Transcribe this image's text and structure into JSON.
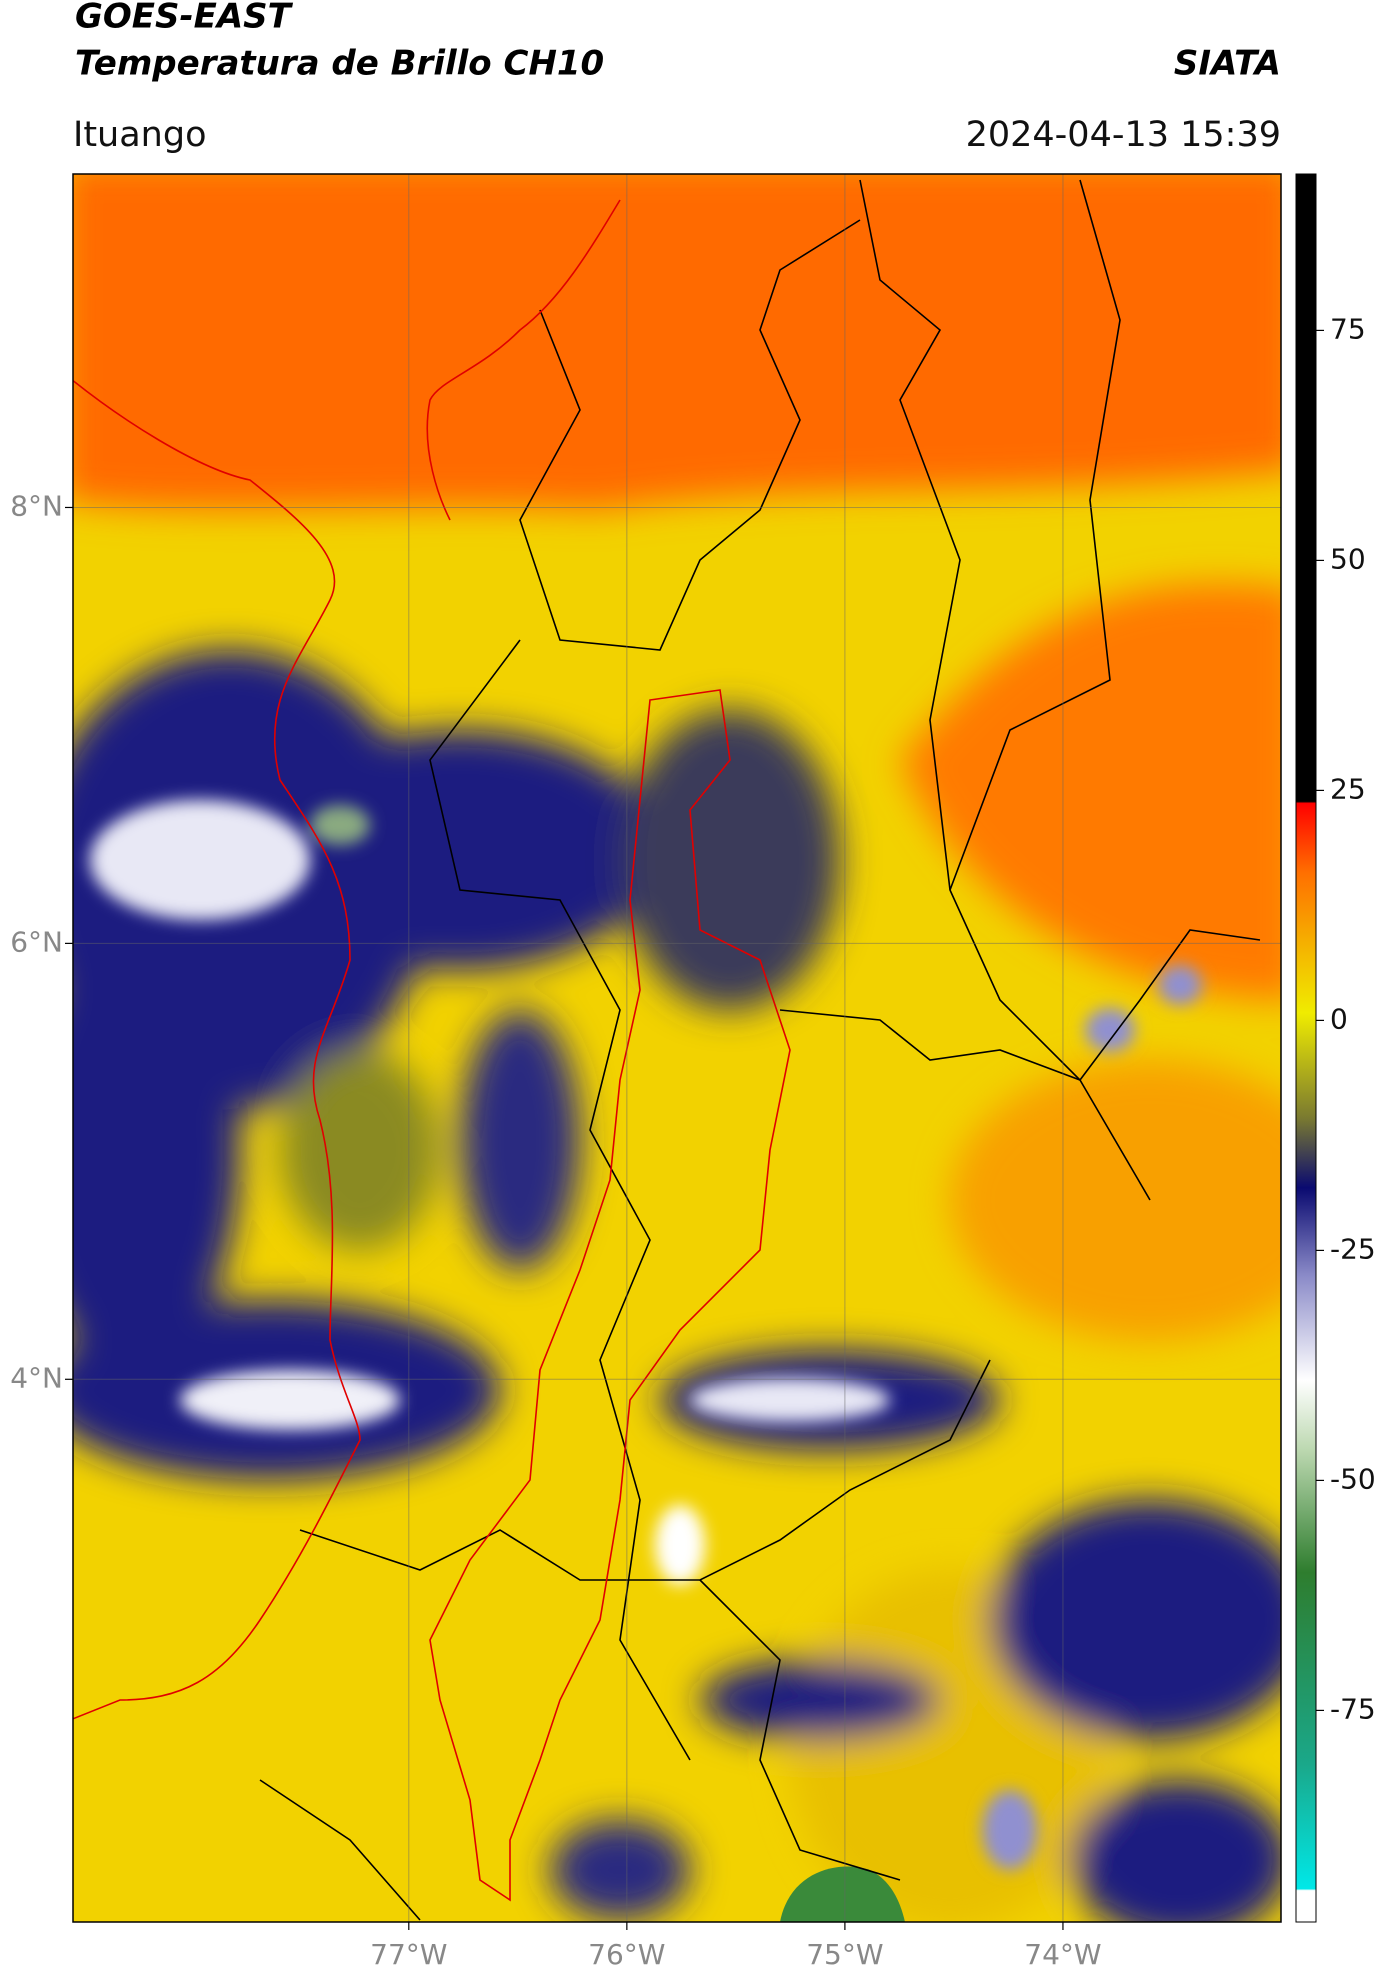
{
  "chart_data": {
    "type": "map",
    "title": "GOES-EAST",
    "subtitle": "Temperatura de Brillo CH10",
    "source": "SIATA",
    "location": "Ituango",
    "datetime": "2024-04-13 15:39",
    "xlim": [
      -78.54,
      -73.0
    ],
    "ylim": [
      1.51,
      9.53
    ],
    "xticks": [
      {
        "value": -77,
        "label": "77°W"
      },
      {
        "value": -76,
        "label": "76°W"
      },
      {
        "value": -75,
        "label": "75°W"
      },
      {
        "value": -74,
        "label": "74°W"
      }
    ],
    "yticks": [
      {
        "value": 8,
        "label": "8°N"
      },
      {
        "value": 6,
        "label": "6°N"
      },
      {
        "value": 4,
        "label": "4°N"
      }
    ],
    "grid": true,
    "colorbar": {
      "lim": [
        -98,
        92
      ],
      "ticks": [
        75,
        50,
        25,
        0,
        -25,
        -50,
        -75
      ]
    }
  }
}
